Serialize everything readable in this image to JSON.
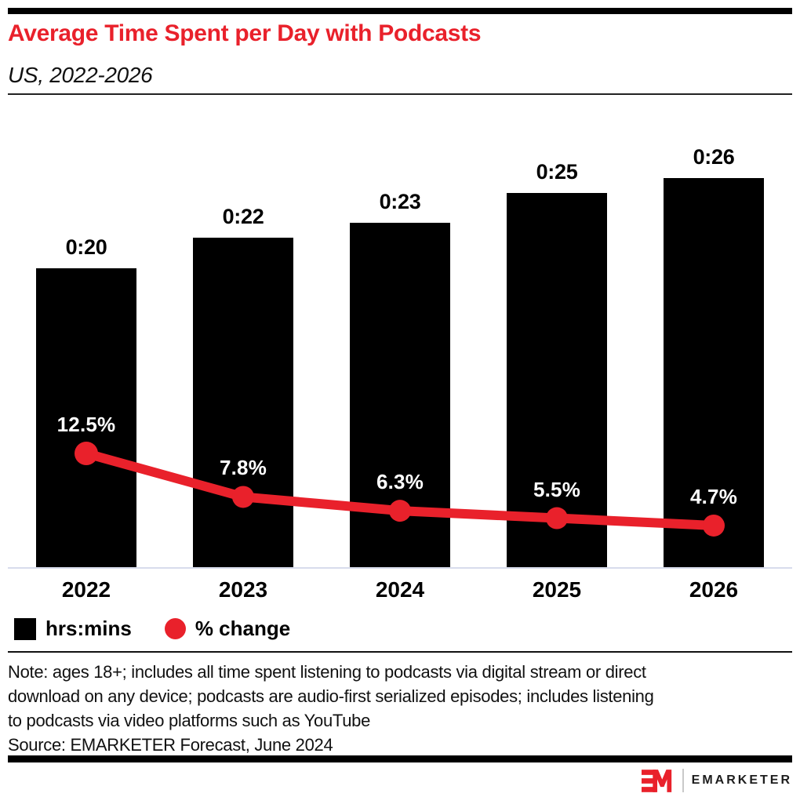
{
  "header": {
    "title": "Average Time Spent per Day with Podcasts",
    "subtitle": "US, 2022-2026"
  },
  "chart_data": {
    "type": "bar",
    "title": "Average Time Spent per Day with Podcasts",
    "subtitle": "US, 2022-2026",
    "categories": [
      "2022",
      "2023",
      "2024",
      "2025",
      "2026"
    ],
    "series": [
      {
        "name": "hrs:mins",
        "type": "bar",
        "values_minutes": [
          20,
          22,
          23,
          25,
          26
        ],
        "labels": [
          "0:20",
          "0:22",
          "0:23",
          "0:25",
          "0:26"
        ],
        "color": "#000000"
      },
      {
        "name": "% change",
        "type": "line",
        "values_percent": [
          12.5,
          7.8,
          6.3,
          5.5,
          4.7
        ],
        "labels": [
          "12.5%",
          "7.8%",
          "6.3%",
          "5.5%",
          "4.7%"
        ],
        "color": "#E9212B"
      }
    ],
    "legend": [
      {
        "label": "hrs:mins",
        "swatch": "square",
        "color": "#000000"
      },
      {
        "label": "% change",
        "swatch": "circle",
        "color": "#E9212B"
      }
    ],
    "legend_position": "bottom-left",
    "grid": false,
    "x_axis": {
      "labels": [
        "2022",
        "2023",
        "2024",
        "2025",
        "2026"
      ]
    }
  },
  "note": {
    "lines": [
      "Note: ages 18+; includes all time spent listening to podcasts via digital stream or direct",
      "download on any device; podcasts are audio-first serialized episodes; includes listening",
      "to podcasts via video platforms such as YouTube"
    ]
  },
  "source": "Source: EMARKETER Forecast, June 2024",
  "logo": {
    "mark": "EM",
    "text": "EMARKETER"
  },
  "colors": {
    "accent_red": "#E9212B",
    "bar_black": "#000000",
    "axis_line": "#D8DCEC",
    "rule_black": "#111111"
  }
}
